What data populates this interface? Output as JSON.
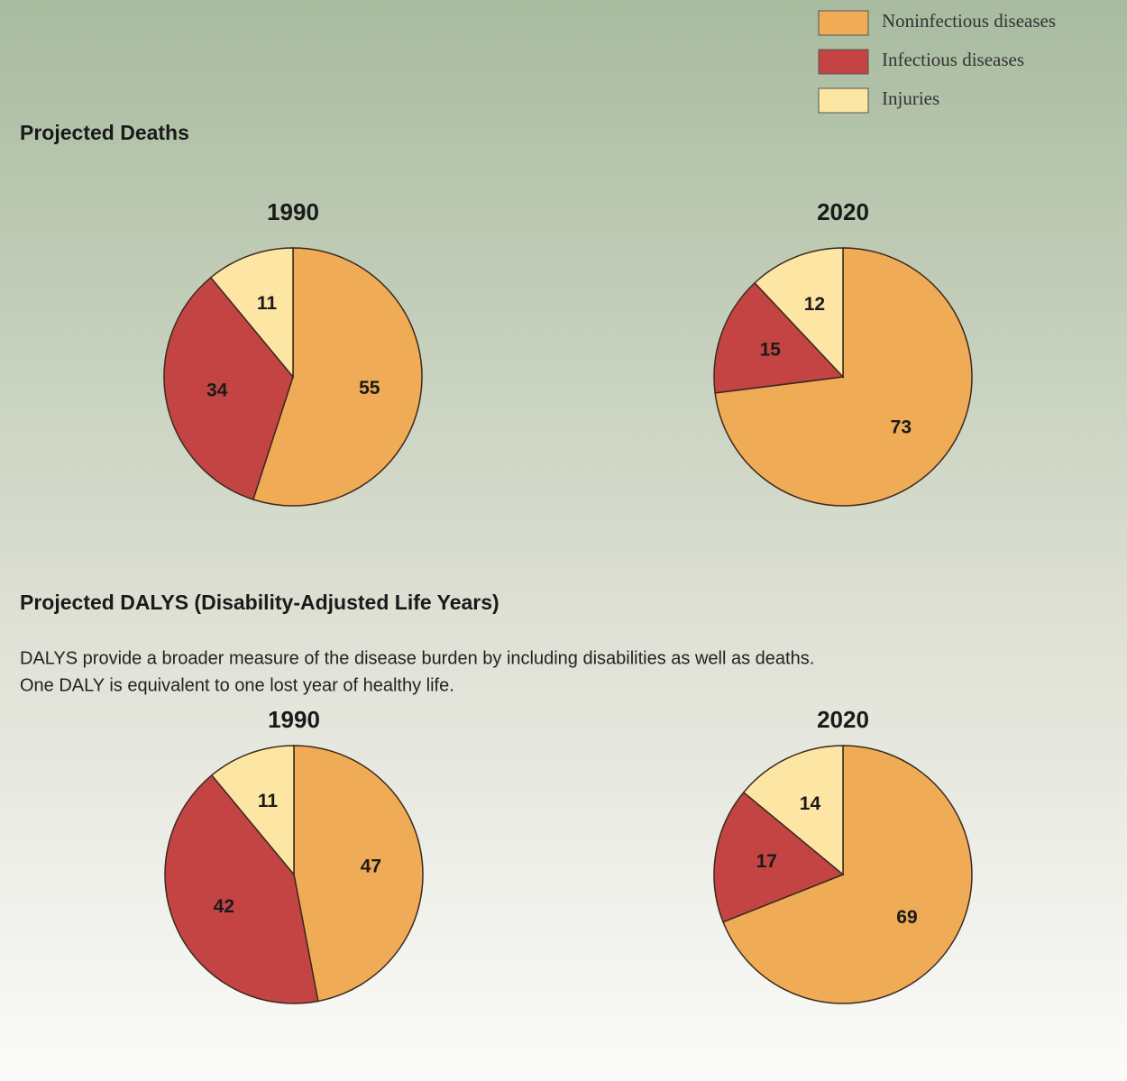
{
  "legend": {
    "labels": [
      "Noninfectious diseases",
      "Infectious diseases",
      "Injuries"
    ],
    "colors": [
      "#efab55",
      "#c44444",
      "#fde5a4"
    ]
  },
  "sections": [
    {
      "heading": "Projected Deaths"
    },
    {
      "heading": "Projected DALYS (Disability-Adjusted Life Years)",
      "description": [
        "DALYS provide a broader measure of the disease burden by including disabilities as well as deaths.",
        "One DALY is equivalent to one lost year of healthy life."
      ]
    }
  ],
  "chart_data": [
    {
      "type": "pie",
      "title": "1990",
      "values": [
        55,
        34,
        11
      ]
    },
    {
      "type": "pie",
      "title": "2020",
      "values": [
        73,
        15,
        12
      ]
    },
    {
      "type": "pie",
      "title": "1990",
      "values": [
        47,
        42,
        11
      ]
    },
    {
      "type": "pie",
      "title": "2020",
      "values": [
        69,
        17,
        14
      ]
    }
  ]
}
